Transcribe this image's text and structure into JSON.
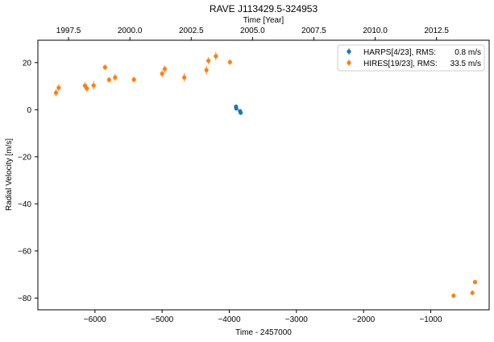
{
  "chart_data": {
    "type": "scatter",
    "title": "RAVE J113429.5-324953",
    "xlabel": "Time - 2457000",
    "ylabel": "Radial Velocity [m/s]",
    "top_xlabel": "Time [Year]",
    "xlim": [
      -6850,
      -130
    ],
    "ylim": [
      -85,
      29.5
    ],
    "x_ticks": [
      -6000,
      -5000,
      -4000,
      -3000,
      -2000,
      -1000
    ],
    "x_tick_labels": [
      "−6000",
      "−5000",
      "−4000",
      "−3000",
      "−2000",
      "−1000"
    ],
    "y_ticks": [
      20,
      0,
      -20,
      -40,
      -60,
      -80
    ],
    "y_tick_labels": [
      "20",
      "0",
      "−20",
      "−40",
      "−60",
      "−80"
    ],
    "top_ticks": [
      1997.5,
      2000.0,
      2002.5,
      2005.0,
      2007.5,
      2010.0,
      2012.5
    ],
    "top_tick_labels": [
      "1997.5",
      "2000.0",
      "2002.5",
      "2005.0",
      "2007.5",
      "2010.0",
      "2012.5"
    ],
    "grid": false,
    "legend_position": "top-right",
    "series": [
      {
        "name": "HARPS[4/23], RMS:",
        "rms": "0.8 m/s",
        "color": "#1f77b4",
        "points": [
          {
            "x": -3900,
            "y": 1.3,
            "err": 0.8
          },
          {
            "x": -3895,
            "y": 0.5,
            "err": 0.8
          },
          {
            "x": -3840,
            "y": -0.6,
            "err": 0.8
          },
          {
            "x": -3830,
            "y": -1.3,
            "err": 0.8
          }
        ]
      },
      {
        "name": "HIRES[19/23], RMS:",
        "rms": "33.5 m/s",
        "color": "#ff7f0e",
        "points": [
          {
            "x": -6580,
            "y": 7.2,
            "err": 1.5
          },
          {
            "x": -6540,
            "y": 9.3,
            "err": 1.5
          },
          {
            "x": -6150,
            "y": 10.2,
            "err": 1.5
          },
          {
            "x": -6120,
            "y": 9.0,
            "err": 1.5
          },
          {
            "x": -6020,
            "y": 10.3,
            "err": 1.8
          },
          {
            "x": -5850,
            "y": 18.0,
            "err": 1.2
          },
          {
            "x": -5790,
            "y": 12.7,
            "err": 1.2
          },
          {
            "x": -5700,
            "y": 13.7,
            "err": 1.5
          },
          {
            "x": -5420,
            "y": 12.8,
            "err": 1.2
          },
          {
            "x": -5000,
            "y": 15.3,
            "err": 1.5
          },
          {
            "x": -4960,
            "y": 17.3,
            "err": 1.5
          },
          {
            "x": -4670,
            "y": 13.7,
            "err": 1.8
          },
          {
            "x": -4340,
            "y": 16.8,
            "err": 1.8
          },
          {
            "x": -4310,
            "y": 20.8,
            "err": 1.5
          },
          {
            "x": -4200,
            "y": 22.7,
            "err": 1.8
          },
          {
            "x": -3990,
            "y": 20.2,
            "err": 1.2
          },
          {
            "x": -660,
            "y": -79.0,
            "err": 1.0
          },
          {
            "x": -380,
            "y": -77.8,
            "err": 1.0
          },
          {
            "x": -340,
            "y": -73.2,
            "err": 1.0
          }
        ]
      }
    ]
  }
}
